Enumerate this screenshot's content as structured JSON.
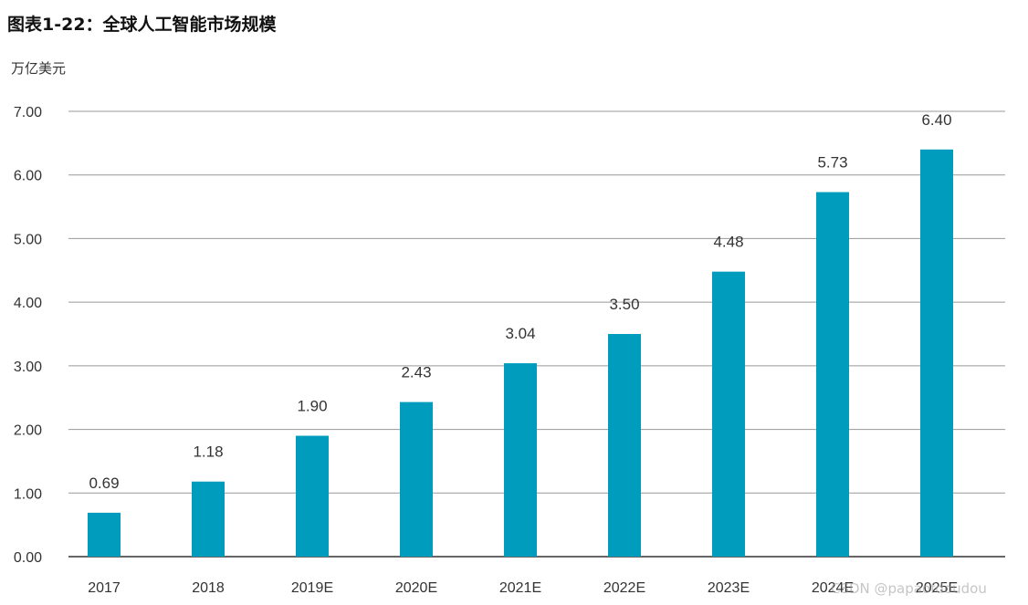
{
  "chart_data": {
    "type": "bar",
    "title": "图表1-22：全球人工智能市场规模",
    "unit_label": "万亿美元",
    "categories": [
      "2017",
      "2018",
      "2019E",
      "2020E",
      "2021E",
      "2022E",
      "2023E",
      "2024E",
      "2025E"
    ],
    "values": [
      0.69,
      1.18,
      1.9,
      2.43,
      3.04,
      3.5,
      4.48,
      5.73,
      6.4
    ],
    "value_labels": [
      "0.69",
      "1.18",
      "1.90",
      "2.43",
      "3.04",
      "3.50",
      "4.48",
      "5.73",
      "6.40"
    ],
    "y_ticks": [
      "0.00",
      "1.00",
      "2.00",
      "3.00",
      "4.00",
      "5.00",
      "6.00",
      "7.00"
    ],
    "ylim": [
      0,
      7
    ],
    "grid": true,
    "bar_color": "#009cbd"
  },
  "watermark": "CSDN @papaofdoudou"
}
